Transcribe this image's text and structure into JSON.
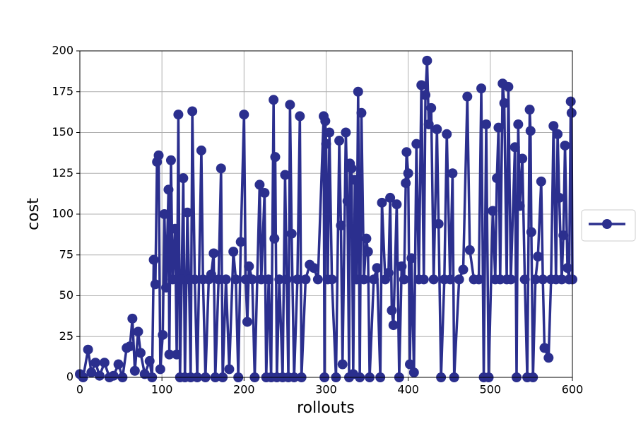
{
  "chart_data": {
    "type": "line",
    "xlabel": "rollouts",
    "ylabel": "cost",
    "xlim": [
      0,
      600
    ],
    "ylim": [
      0,
      200
    ],
    "xticks": [
      0,
      100,
      200,
      300,
      400,
      500,
      600
    ],
    "yticks": [
      0,
      25,
      50,
      75,
      100,
      125,
      150,
      175,
      200
    ],
    "grid": true,
    "legend": "right",
    "markers": true,
    "x": [
      0,
      4,
      10,
      14,
      19,
      24,
      30,
      36,
      41,
      47,
      52,
      57,
      61,
      64,
      67,
      71,
      74,
      79,
      85,
      88,
      90,
      92,
      94,
      96,
      98,
      101,
      103,
      105,
      108,
      109,
      111,
      113,
      116,
      118,
      120,
      122,
      124,
      126,
      128,
      131,
      133,
      135,
      137,
      140,
      143,
      148,
      150,
      153,
      157,
      160,
      163,
      165,
      169,
      172,
      174,
      178,
      182,
      187,
      190,
      193,
      196,
      200,
      202,
      204,
      206,
      210,
      213,
      219,
      221,
      225,
      227,
      230,
      233,
      236,
      237,
      238,
      240,
      243,
      247,
      250,
      252,
      254,
      256,
      258,
      261,
      265,
      268,
      270,
      275,
      280,
      285,
      290,
      297,
      298,
      299,
      300,
      302,
      304,
      307,
      312,
      316,
      318,
      320,
      324,
      326,
      328,
      329,
      331,
      333,
      335,
      337,
      339,
      341,
      343,
      346,
      349,
      351,
      353,
      358,
      362,
      366,
      368,
      372,
      376,
      378,
      380,
      382,
      386,
      389,
      392,
      395,
      397,
      398,
      400,
      402,
      404,
      407,
      410,
      413,
      416,
      419,
      421,
      423,
      425,
      428,
      431,
      435,
      437,
      440,
      444,
      447,
      451,
      454,
      456,
      462,
      467,
      472,
      475,
      480,
      486,
      489,
      492,
      495,
      498,
      503,
      506,
      508,
      510,
      512,
      515,
      517,
      520,
      522,
      525,
      530,
      532,
      534,
      536,
      539,
      542,
      545,
      548,
      549,
      550,
      552,
      555,
      558,
      562,
      564,
      566,
      571,
      574,
      577,
      580,
      582,
      584,
      587,
      589,
      591,
      594,
      596,
      598,
      599,
      600
    ],
    "series": [
      {
        "color": "#2b2f8e",
        "values": [
          2,
          0,
          17,
          3,
          9,
          1,
          9,
          0,
          1,
          8,
          0,
          18,
          19,
          36,
          4,
          28,
          15,
          2,
          10,
          0,
          72,
          57,
          132,
          136,
          5,
          26,
          100,
          55,
          115,
          14,
          133,
          60,
          91,
          14,
          161,
          0,
          60,
          122,
          0,
          101,
          60,
          0,
          163,
          60,
          0,
          139,
          60,
          0,
          60,
          63,
          76,
          0,
          60,
          128,
          0,
          60,
          5,
          77,
          60,
          0,
          83,
          161,
          60,
          34,
          68,
          60,
          0,
          118,
          60,
          113,
          0,
          60,
          0,
          170,
          85,
          135,
          0,
          60,
          0,
          124,
          60,
          0,
          167,
          88,
          0,
          60,
          160,
          0,
          60,
          69,
          67,
          60,
          160,
          0,
          157,
          143,
          60,
          150,
          60,
          0,
          145,
          93,
          8,
          150,
          108,
          0,
          131,
          128,
          2,
          121,
          60,
          175,
          0,
          162,
          60,
          85,
          77,
          0,
          60,
          67,
          0,
          107,
          60,
          64,
          110,
          41,
          32,
          106,
          0,
          68,
          60,
          119,
          138,
          125,
          8,
          73,
          3,
          143,
          60,
          179,
          60,
          173,
          194,
          155,
          165,
          60,
          152,
          94,
          0,
          60,
          149,
          60,
          125,
          0,
          60,
          66,
          172,
          78,
          60,
          60,
          177,
          0,
          155,
          0,
          102,
          60,
          122,
          153,
          60,
          180,
          168,
          60,
          178,
          60,
          141,
          0,
          155,
          105,
          134,
          60,
          0,
          164,
          151,
          89,
          0,
          60,
          74,
          120,
          60,
          18,
          12,
          60,
          154,
          60,
          149,
          110,
          60,
          87,
          142,
          67,
          60,
          169,
          162,
          60
        ]
      }
    ]
  }
}
